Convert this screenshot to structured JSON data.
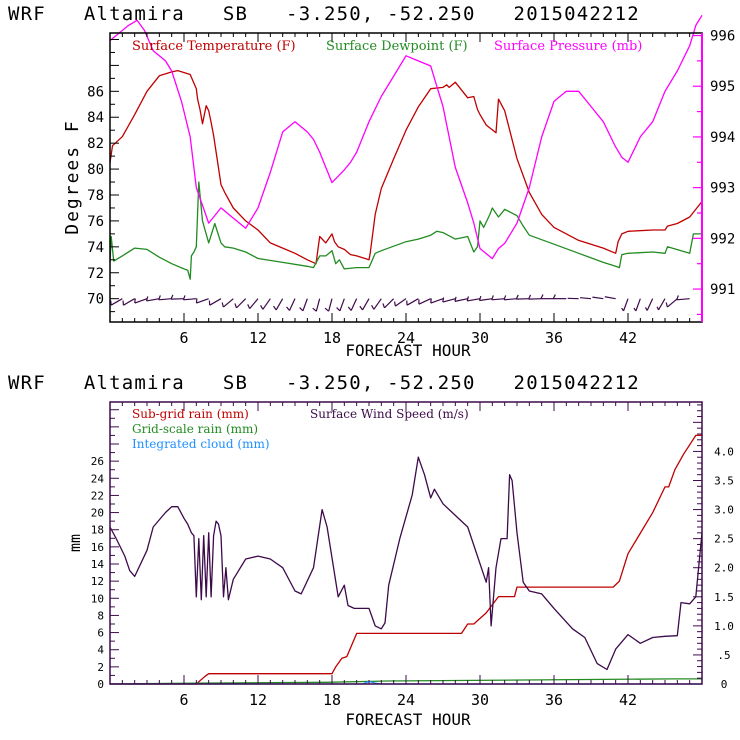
{
  "chart_data": [
    {
      "type": "line",
      "title": "WRF   Altamira   SB   -3.250, -52.250   2015042212",
      "xlabel": "FORECAST HOUR",
      "ylabel": "Degrees F",
      "y2label": "",
      "xlim": [
        0,
        48
      ],
      "ylim": [
        68.2,
        90.5
      ],
      "y2lim": [
        990.35,
        996.05
      ],
      "xticks": [
        6,
        12,
        18,
        24,
        30,
        36,
        42
      ],
      "xtick_labels": [
        "6",
        "12",
        "18",
        "24",
        "30",
        "36",
        "42"
      ],
      "yticks": [
        70,
        72,
        74,
        76,
        78,
        80,
        82,
        84,
        86
      ],
      "ytick_labels": [
        "70",
        "72",
        "74",
        "76",
        "78",
        "80",
        "82",
        "84",
        "86"
      ],
      "y2ticks": [
        991,
        992,
        993,
        994,
        995,
        996
      ],
      "y2tick_labels": [
        "991",
        "992",
        "993",
        "994",
        "995",
        "996"
      ],
      "legend": [
        "Surface Temperature (F)",
        "Surface Dewpoint (F)",
        "Surface Pressure (mb)"
      ],
      "legend_placement": "top",
      "grid": false,
      "series": [
        {
          "name": "Surface Temperature (F)",
          "axis": "left",
          "color": "#c00000",
          "x": [
            0,
            0.2,
            1,
            2,
            3,
            4,
            5,
            5.5,
            6.5,
            7,
            7.1,
            7.3,
            7.5,
            7.8,
            8,
            8.2,
            8.4,
            9,
            9.3,
            10,
            11,
            12,
            13,
            14,
            15,
            16,
            16.7,
            17,
            17.5,
            18,
            18.2,
            18.5,
            19,
            19.5,
            20,
            21,
            21.1,
            21.5,
            22,
            23,
            24,
            25,
            26,
            27,
            27.3,
            27.5,
            28,
            29,
            29.5,
            29.8,
            30,
            30.5,
            31.3,
            31.5,
            32,
            33,
            34,
            35,
            36,
            38,
            40,
            41,
            41.2,
            41.5,
            42,
            44,
            45,
            45.2,
            46,
            47,
            48
          ],
          "y": [
            80.5,
            81.8,
            82.5,
            84.2,
            86,
            87.2,
            87.5,
            87.6,
            87.3,
            86.2,
            85.4,
            84.6,
            83.5,
            84.9,
            84.5,
            83.6,
            82.6,
            78.8,
            78.2,
            77,
            76,
            75.3,
            74.3,
            73.9,
            73.5,
            73,
            72.7,
            74.8,
            74.3,
            75,
            74.4,
            74,
            73.8,
            73.4,
            73.3,
            73,
            73.5,
            76.5,
            78.5,
            80.8,
            83,
            84.8,
            86.2,
            86.3,
            86.5,
            86.3,
            86.7,
            85.5,
            85.6,
            84.6,
            84.2,
            83.4,
            82.8,
            85.4,
            84.5,
            80.8,
            78.2,
            76.5,
            75.5,
            74.5,
            73.9,
            73.5,
            74.4,
            75,
            75.2,
            75.3,
            75.3,
            75.6,
            75.8,
            76.3,
            77.5
          ]
        },
        {
          "name": "Surface Dewpoint (F)",
          "axis": "left",
          "color": "#228b22",
          "x": [
            0,
            0.1,
            0.3,
            1,
            2,
            3,
            4,
            5,
            6,
            6.3,
            6.5,
            6.6,
            6.8,
            7,
            7.2,
            7.5,
            8,
            8.5,
            9,
            9.3,
            10,
            11,
            12,
            14,
            16,
            16.5,
            17,
            17.5,
            18,
            18.3,
            18.6,
            19,
            20,
            21,
            21.5,
            22,
            24,
            25,
            26,
            26.5,
            27,
            28,
            29,
            29.5,
            29.8,
            30,
            30.3,
            30.8,
            31,
            31.5,
            32,
            33,
            33.5,
            34,
            36,
            38,
            40,
            41,
            41.3,
            41.5,
            42,
            44,
            45,
            45.2,
            47,
            47.3,
            48
          ],
          "y": [
            72.8,
            74.8,
            72.9,
            73.3,
            73.9,
            73.8,
            73.2,
            72.7,
            72.3,
            72.2,
            71.5,
            73.3,
            73.6,
            74,
            79,
            76,
            74.3,
            75.8,
            74.3,
            74,
            73.9,
            73.6,
            73.1,
            72.8,
            72.5,
            72.4,
            73.3,
            73.3,
            73.7,
            72.7,
            73,
            72.3,
            72.4,
            72.4,
            73.5,
            73.7,
            74.4,
            74.6,
            74.9,
            75.2,
            75.1,
            74.6,
            74.8,
            73.6,
            74,
            76,
            75.5,
            76.5,
            77,
            76.3,
            76.9,
            76.4,
            75.6,
            74.9,
            74.2,
            73.5,
            72.8,
            72.5,
            72.4,
            73.4,
            73.5,
            73.6,
            73.5,
            74,
            73.5,
            75,
            75
          ]
        },
        {
          "name": "Surface Pressure (mb)",
          "axis": "right",
          "color": "#ff00ff",
          "x": [
            0,
            0.5,
            1.5,
            2.2,
            2.8,
            3.5,
            4.5,
            5,
            5.8,
            6.5,
            7,
            8,
            9,
            10,
            11,
            12,
            13,
            14,
            15,
            16,
            16.5,
            17,
            17.5,
            18,
            19,
            19.5,
            20,
            21,
            22,
            23,
            24,
            25,
            26,
            26.5,
            27,
            28,
            29,
            29.5,
            30,
            31,
            31.5,
            32,
            33,
            34,
            35,
            36,
            37,
            38,
            39,
            40,
            41,
            41.5,
            42,
            43,
            44,
            45,
            46,
            47,
            47.5,
            48
          ],
          "y": [
            995.9,
            996.0,
            996.2,
            996.3,
            996.1,
            995.7,
            995.5,
            995.3,
            994.7,
            994.0,
            993.0,
            992.3,
            992.6,
            992.4,
            992.2,
            992.6,
            993.3,
            994.1,
            994.3,
            994.1,
            993.95,
            993.7,
            993.4,
            993.1,
            993.35,
            993.5,
            993.7,
            994.3,
            994.8,
            995.2,
            995.6,
            995.5,
            995.4,
            995.0,
            994.6,
            993.4,
            992.7,
            992.3,
            991.8,
            991.6,
            991.8,
            991.9,
            992.3,
            993.0,
            994.0,
            994.7,
            994.9,
            994.9,
            994.6,
            994.3,
            993.8,
            993.6,
            993.5,
            994.0,
            994.3,
            994.9,
            995.3,
            995.8,
            996.2,
            996.4
          ]
        }
      ],
      "wind_barbs": {
        "name": "Surface wind barbs",
        "color": "#3d0a4a",
        "y_level": 70,
        "x": [
          1,
          2,
          3,
          4,
          5,
          6,
          7,
          8,
          9,
          10,
          11,
          12,
          13,
          14,
          15,
          16,
          17,
          18,
          19,
          20,
          21,
          22,
          23,
          24,
          25,
          26,
          27,
          28,
          29,
          30,
          31,
          32,
          33,
          34,
          35,
          36,
          37,
          38,
          39,
          40,
          41,
          42,
          43,
          44,
          45,
          46,
          47
        ],
        "direction_deg": [
          240,
          240,
          250,
          260,
          265,
          268,
          265,
          250,
          240,
          230,
          225,
          220,
          215,
          210,
          205,
          200,
          195,
          195,
          200,
          205,
          210,
          215,
          225,
          235,
          240,
          245,
          250,
          255,
          258,
          260,
          262,
          265,
          265,
          268,
          268,
          270,
          270,
          272,
          275,
          278,
          280,
          200,
          200,
          205,
          210,
          230,
          265
        ],
        "speed_kt": [
          5,
          5,
          5,
          5,
          5,
          5,
          5,
          5,
          5,
          5,
          5,
          5,
          5,
          5,
          5,
          5,
          5,
          5,
          5,
          5,
          5,
          5,
          5,
          5,
          5,
          5,
          5,
          5,
          5,
          5,
          5,
          5,
          5,
          5,
          5,
          5,
          5,
          0,
          0,
          0,
          0,
          2,
          2,
          2,
          2,
          5,
          5
        ]
      }
    },
    {
      "type": "line",
      "title": "WRF   Altamira   SB   -3.250, -52.250   2015042212",
      "xlabel": "FORECAST HOUR",
      "ylabel": "mm",
      "xlim": [
        0,
        48
      ],
      "ylim": [
        0,
        32.9
      ],
      "y2lim": [
        0,
        4.85
      ],
      "xticks": [
        6,
        12,
        18,
        24,
        30,
        36,
        42
      ],
      "xtick_labels": [
        "6",
        "12",
        "18",
        "24",
        "30",
        "36",
        "42"
      ],
      "yticks": [
        0,
        2,
        4,
        6,
        8,
        10,
        12,
        14,
        16,
        18,
        20,
        22,
        24,
        26
      ],
      "ytick_labels": [
        "0",
        "2",
        "4",
        "6",
        "8",
        "10",
        "12",
        "14",
        "16",
        "18",
        "20",
        "22",
        "24",
        "26"
      ],
      "y2ticks": [
        0,
        0.5,
        1.0,
        1.5,
        2.0,
        2.5,
        3.0,
        3.5,
        4.0
      ],
      "y2tick_labels": [
        "0",
        ".5",
        "1.0",
        "1.5",
        "2.0",
        "2.5",
        "3.0",
        "3.5",
        "4.0"
      ],
      "legend": [
        "Sub-grid rain (mm)",
        "Grid-scale rain (mm)",
        "Integrated cloud (mm)",
        "Surface Wind Speed (m/s)"
      ],
      "legend_placement": "top-left",
      "grid": false,
      "series": [
        {
          "name": "Sub-grid rain (mm)",
          "axis": "left",
          "color": "#c00000",
          "x": [
            0,
            6.8,
            7.0,
            7.7,
            8.0,
            17.5,
            18.0,
            18.3,
            18.8,
            19.2,
            20,
            28.5,
            29.0,
            29.5,
            30.5,
            31.5,
            32.8,
            33.0,
            40.8,
            41.3,
            42,
            44,
            45,
            45.3,
            45.8,
            46.5,
            47.5,
            48
          ],
          "y": [
            0,
            0,
            0,
            0.9,
            1.2,
            1.2,
            1.2,
            2.0,
            3.0,
            3.2,
            5.9,
            5.9,
            7.0,
            7.0,
            8.3,
            10.2,
            10.2,
            11.3,
            11.3,
            12.0,
            15.2,
            20.0,
            23.0,
            23.0,
            25.0,
            26.8,
            29.0,
            29.0
          ]
        },
        {
          "name": "Grid-scale rain (mm)",
          "axis": "left",
          "color": "#228b22",
          "x": [
            0,
            7,
            17.5,
            22.5,
            45.5,
            48
          ],
          "y": [
            0,
            0.1,
            0.2,
            0.35,
            0.6,
            0.6
          ]
        },
        {
          "name": "Integrated cloud (mm)",
          "axis": "left",
          "color": "#1e90ff",
          "x": [
            0,
            20.5,
            21.0,
            21.5,
            22,
            48
          ],
          "y": [
            0,
            0,
            0.3,
            0.1,
            0,
            0
          ]
        },
        {
          "name": "Surface Wind Speed (m/s)",
          "axis": "right",
          "color": "#3d0a4a",
          "x": [
            0,
            0.5,
            1.2,
            1.6,
            2.0,
            3.0,
            3.5,
            4.5,
            5.0,
            5.5,
            6.0,
            6.3,
            6.6,
            6.8,
            7.0,
            7.2,
            7.4,
            7.6,
            7.8,
            8.0,
            8.2,
            8.4,
            8.6,
            8.8,
            9.0,
            9.2,
            9.4,
            9.6,
            10.0,
            11.0,
            12,
            13,
            14,
            15,
            15.5,
            16.5,
            17.2,
            17.6,
            18.5,
            19,
            19.3,
            19.8,
            21,
            21.5,
            22,
            22.3,
            22.6,
            23.5,
            24.5,
            25.0,
            25.5,
            26.0,
            26.3,
            27,
            28,
            29,
            30.5,
            30.7,
            30.9,
            31.3,
            31.7,
            32.2,
            32.4,
            32.6,
            33,
            33.5,
            34,
            35,
            36,
            37.5,
            38.5,
            39.5,
            40.3,
            41,
            42,
            43,
            44,
            45,
            46,
            46.3,
            47,
            47.5,
            48
          ],
          "y": [
            2.7,
            2.5,
            2.2,
            1.95,
            1.85,
            2.3,
            2.7,
            2.95,
            3.05,
            3.05,
            2.85,
            2.75,
            2.6,
            2.55,
            1.5,
            2.5,
            1.45,
            2.55,
            1.5,
            2.6,
            1.5,
            2.55,
            2.8,
            2.75,
            2.55,
            1.5,
            2.0,
            1.45,
            1.8,
            2.15,
            2.2,
            2.15,
            2.0,
            1.6,
            1.55,
            2.0,
            3.0,
            2.7,
            1.5,
            1.7,
            1.35,
            1.3,
            1.3,
            1.0,
            0.95,
            1.05,
            1.7,
            2.5,
            3.25,
            3.9,
            3.6,
            3.2,
            3.35,
            3.1,
            2.9,
            2.7,
            1.75,
            2.0,
            1.0,
            2.0,
            2.5,
            2.5,
            3.6,
            3.5,
            2.6,
            1.75,
            1.6,
            1.55,
            1.3,
            0.95,
            0.8,
            0.35,
            0.25,
            0.6,
            0.85,
            0.7,
            0.8,
            0.82,
            0.83,
            1.4,
            1.38,
            1.5,
            2.6
          ]
        }
      ]
    }
  ]
}
